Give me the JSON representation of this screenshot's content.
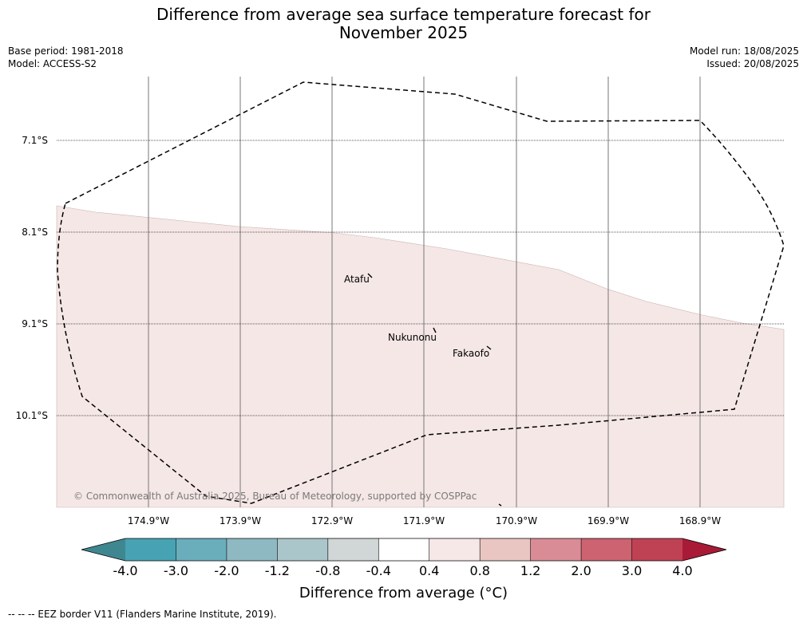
{
  "title_line1": "Difference from average sea surface temperature forecast for",
  "title_line2": "November 2025",
  "base_period": "Base period: 1981-2018",
  "model": "Model: ACCESS-S2",
  "model_run": "Model run: 18/08/2025",
  "issued": "Issued: 20/08/2025",
  "lat_labels": [
    "7.1°S",
    "8.1°S",
    "9.1°S",
    "10.1°S"
  ],
  "lon_labels": [
    "174.9°W",
    "173.9°W",
    "172.9°W",
    "171.9°W",
    "170.9°W",
    "169.9°W",
    "168.9°W"
  ],
  "places": [
    "Atafu",
    "Nukunonu",
    "Fakaofo"
  ],
  "copyright": "© Commonwealth of Australia 2025, Bureau of Meteorology, supported by COSPPac",
  "colorbar": {
    "ticks": [
      "-4.0",
      "-3.0",
      "-2.0",
      "-1.2",
      "-0.8",
      "-0.4",
      "0.4",
      "0.8",
      "1.2",
      "2.0",
      "3.0",
      "4.0"
    ],
    "colors": [
      "#3f8790",
      "#47a3b3",
      "#6aaebc",
      "#8eb9c3",
      "#aac6ca",
      "#d0d7d6",
      "#ffffff",
      "#f6e8e6",
      "#e9c6c2",
      "#d98c95",
      "#cd6270",
      "#bf4254",
      "#a91a36"
    ],
    "title": "Difference from average (°C)"
  },
  "map_fill_color": "#f5e7e6",
  "footer": "--  --  -- EEZ border V11 (Flanders Marine Institute, 2019)."
}
